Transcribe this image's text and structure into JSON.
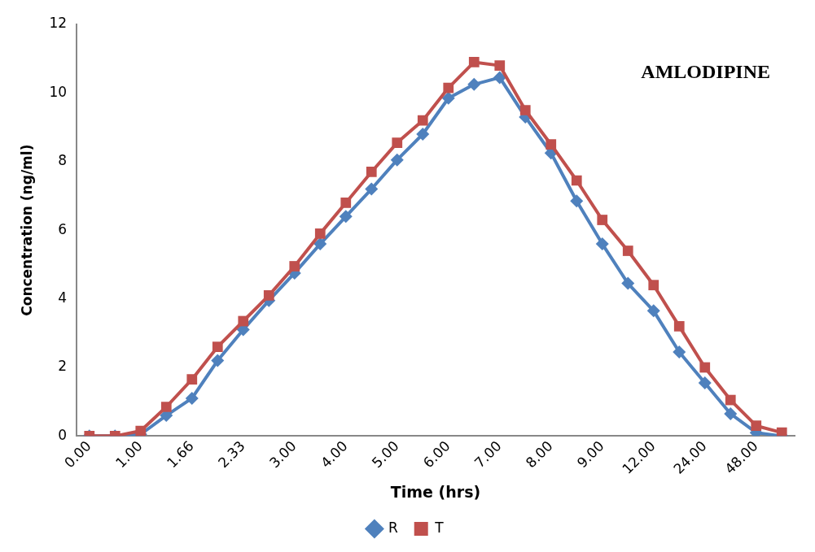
{
  "chart_data": {
    "type": "line",
    "title": "AMLODIPINE",
    "xlabel": "Time (hrs)",
    "ylabel": "Concentration (ng/ml)",
    "categories": [
      "0.00",
      null,
      "1.00",
      null,
      "1.66",
      null,
      "2.33",
      null,
      "3.00",
      null,
      "4.00",
      null,
      "5.00",
      null,
      "6.00",
      null,
      "7.00",
      null,
      "8.00",
      null,
      "9.00",
      null,
      "12.00",
      null,
      "24.00",
      null,
      "48.00",
      null
    ],
    "series": [
      {
        "name": "R",
        "color": "#4f81bd",
        "marker": "diamond",
        "values": [
          0,
          0,
          0.05,
          0.6,
          1.1,
          2.2,
          3.1,
          3.95,
          4.75,
          5.6,
          6.4,
          7.2,
          8.05,
          8.8,
          9.85,
          10.25,
          10.45,
          9.3,
          8.25,
          6.85,
          5.6,
          4.45,
          3.65,
          2.45,
          1.55,
          0.65,
          0.1,
          0
        ]
      },
      {
        "name": "T",
        "color": "#c0504d",
        "marker": "square",
        "values": [
          0,
          0,
          0.15,
          0.85,
          1.65,
          2.6,
          3.35,
          4.1,
          4.95,
          5.9,
          6.8,
          7.7,
          8.55,
          9.2,
          10.15,
          10.9,
          10.8,
          9.5,
          8.5,
          7.45,
          6.3,
          5.4,
          4.4,
          3.2,
          2.0,
          1.05,
          0.3,
          0.1
        ]
      }
    ],
    "ylim": [
      0,
      12
    ],
    "yticks": [
      0,
      2,
      4,
      6,
      8,
      10,
      12
    ],
    "legend": "bottom"
  }
}
